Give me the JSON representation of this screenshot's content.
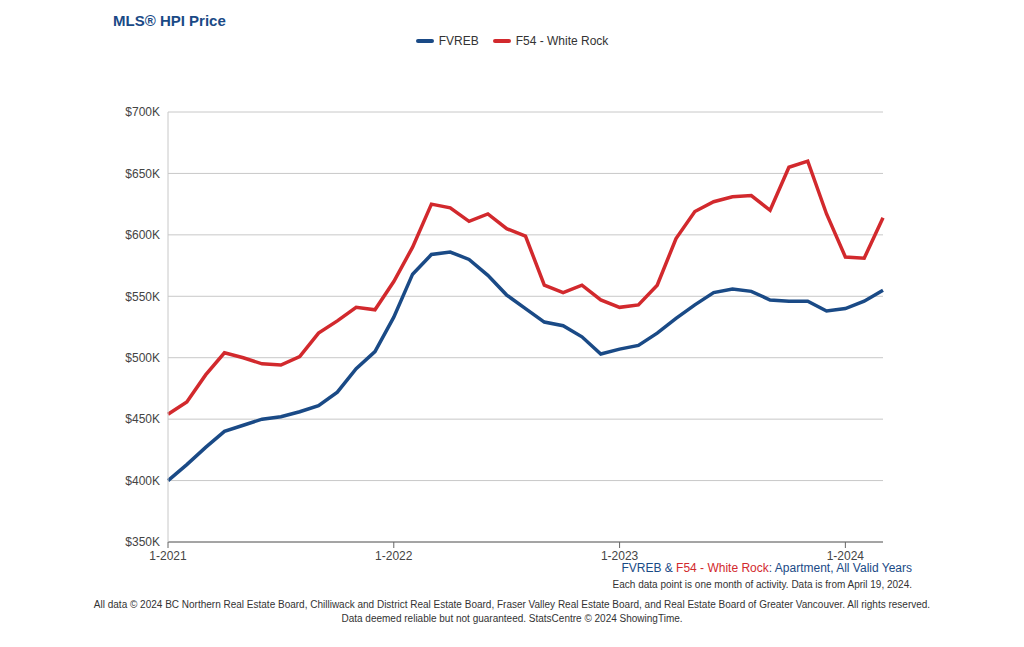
{
  "chart_data": {
    "type": "line",
    "title": "MLS® HPI Price",
    "subtitle": "FVREB & F54 - White Rock: Apartment, All Valid Years",
    "annotations": [
      "Each data point is one month of activity. Data is from April 19, 2024.",
      "All data © 2024 BC Northern Real Estate Board, Chilliwack and District Real Estate Board, Fraser Valley Real Estate Board, and Real Estate Board of Greater Vancouver. All rights reserved.",
      "Data deemed reliable but not guaranteed. StatsCentre © 2024 ShowingTime."
    ],
    "categories": [
      "1-2021",
      null,
      null,
      null,
      null,
      null,
      null,
      null,
      null,
      null,
      null,
      null,
      "1-2022",
      null,
      null,
      null,
      null,
      null,
      null,
      null,
      null,
      null,
      null,
      null,
      "1-2023",
      null,
      null,
      null,
      null,
      null,
      null,
      null,
      null,
      null,
      null,
      null,
      "1-2024",
      null,
      null
    ],
    "series": [
      {
        "name": "FVREB",
        "color": "#1a4a86",
        "values": [
          400000,
          413000,
          427000,
          440000,
          445000,
          450000,
          452000,
          456000,
          461000,
          472000,
          491000,
          505000,
          533000,
          568000,
          584000,
          586000,
          580000,
          567000,
          551000,
          540000,
          529000,
          526000,
          517000,
          503000,
          507000,
          510000,
          520000,
          532000,
          543000,
          553000,
          556000,
          554000,
          547000,
          546000,
          546000,
          538000,
          540000,
          546000,
          555000
        ]
      },
      {
        "name": "F54 - White Rock",
        "color": "#d2292d",
        "values": [
          454000,
          464000,
          486000,
          504000,
          500000,
          495000,
          494000,
          501000,
          520000,
          530000,
          541000,
          539000,
          562000,
          590000,
          625000,
          622000,
          611000,
          617000,
          605000,
          599000,
          559000,
          553000,
          559000,
          547000,
          541000,
          543000,
          559000,
          597000,
          619000,
          627000,
          631000,
          632000,
          620000,
          655000,
          660000,
          617000,
          582000,
          581000,
          614000
        ]
      }
    ],
    "ylim": [
      350000,
      700000
    ],
    "yticks": [
      {
        "value": 350000,
        "label": "$350K"
      },
      {
        "value": 400000,
        "label": "$400K"
      },
      {
        "value": 450000,
        "label": "$450K"
      },
      {
        "value": 500000,
        "label": "$500K"
      },
      {
        "value": 550000,
        "label": "$550K"
      },
      {
        "value": 600000,
        "label": "$600K"
      },
      {
        "value": 650000,
        "label": "$650K"
      },
      {
        "value": 700000,
        "label": "$700K"
      }
    ],
    "grid": true,
    "legend": "top"
  }
}
